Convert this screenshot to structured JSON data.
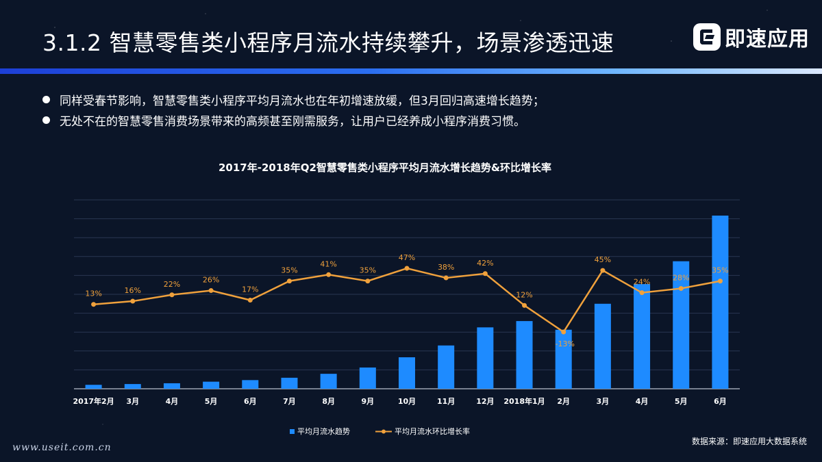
{
  "header": {
    "title": "3.1.2  智慧零售类小程序月流水持续攀升，场景渗透迅速",
    "logo_text": "即速应用"
  },
  "bullets": [
    "同样受春节影响，智慧零售类小程序平均月流水也在年初增速放缓，但3月回归高速增长趋势；",
    "无处不在的智慧零售消费场景带来的高频甚至刚需服务，让用户已经养成小程序消费习惯。"
  ],
  "footer": {
    "url": "www.useit.com.cn",
    "source": "数据来源：即速应用大数据系统"
  },
  "colors": {
    "bar": "#1e8bff",
    "line": "#f0a13c",
    "grid": "#2a3652"
  },
  "chart_data": {
    "type": "bar",
    "title": "2017年-2018年Q2智慧零售类小程序平均月流水增长趋势&环比增长率",
    "categories": [
      "2017年2月",
      "3月",
      "4月",
      "5月",
      "6月",
      "7月",
      "8月",
      "9月",
      "10月",
      "11月",
      "12月",
      "2018年1月",
      "2月",
      "3月",
      "4月",
      "5月",
      "6月"
    ],
    "series": [
      {
        "name": "平均月流水趋势",
        "type": "bar",
        "values": [
          5,
          6,
          7,
          9,
          11,
          14,
          19,
          27,
          40,
          55,
          78,
          86,
          75,
          108,
          133,
          162,
          220
        ]
      },
      {
        "name": "平均月流水环比增长率",
        "type": "line",
        "values": [
          13,
          16,
          22,
          26,
          17,
          35,
          41,
          35,
          47,
          38,
          42,
          12,
          -13,
          45,
          24,
          28,
          35
        ],
        "labels": [
          "13%",
          "16%",
          "22%",
          "26%",
          "17%",
          "35%",
          "41%",
          "35%",
          "47%",
          "38%",
          "42%",
          "12%",
          "-13%",
          "45%",
          "24%",
          "28%",
          "35%"
        ]
      }
    ],
    "legend": "bottom",
    "grid": true
  }
}
